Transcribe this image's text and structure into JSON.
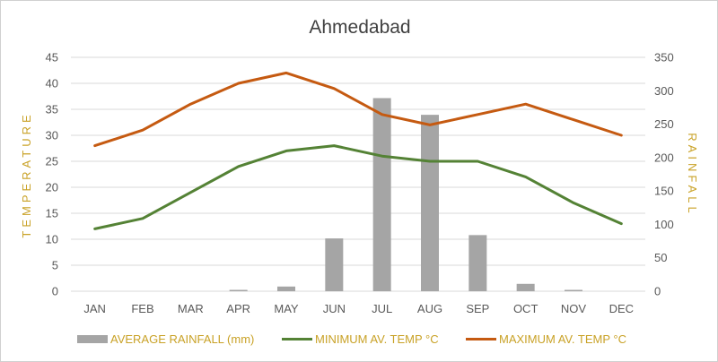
{
  "chart_data": {
    "type": "bar",
    "title": "Ahmedabad",
    "categories": [
      "JAN",
      "FEB",
      "MAR",
      "APR",
      "MAY",
      "JUN",
      "JUL",
      "AUG",
      "SEP",
      "OCT",
      "NOV",
      "DEC"
    ],
    "y_left": {
      "label": "TEMPERATURE",
      "ticks": [
        0,
        5,
        10,
        15,
        20,
        25,
        30,
        35,
        40,
        45
      ],
      "ylim": [
        0,
        45
      ]
    },
    "y_right": {
      "label": "RAINFALL",
      "ticks": [
        0,
        50,
        100,
        150,
        200,
        250,
        300,
        350
      ],
      "ylim": [
        0,
        350
      ]
    },
    "grid": true,
    "legend_position": "bottom",
    "series": [
      {
        "name": "AVERAGE RAINFALL (mm)",
        "type": "bar",
        "axis": "right",
        "color": "#a5a5a5",
        "values": [
          0,
          0,
          0,
          2,
          7,
          79,
          289,
          264,
          84,
          11,
          2,
          0
        ]
      },
      {
        "name": "MINIMUM AV. TEMP °C",
        "type": "line",
        "axis": "left",
        "color": "#548235",
        "values": [
          12,
          14,
          19,
          24,
          27,
          28,
          26,
          25,
          25,
          22,
          17,
          13
        ]
      },
      {
        "name": "MAXIMUM AV. TEMP °C",
        "type": "line",
        "axis": "left",
        "color": "#c55a11",
        "values": [
          28,
          31,
          36,
          40,
          42,
          39,
          34,
          32,
          34,
          36,
          33,
          30
        ]
      }
    ],
    "colors": {
      "axis_label": "#c9a227",
      "tick": "#595959",
      "grid": "#d9d9d9",
      "title": "#404040"
    }
  }
}
